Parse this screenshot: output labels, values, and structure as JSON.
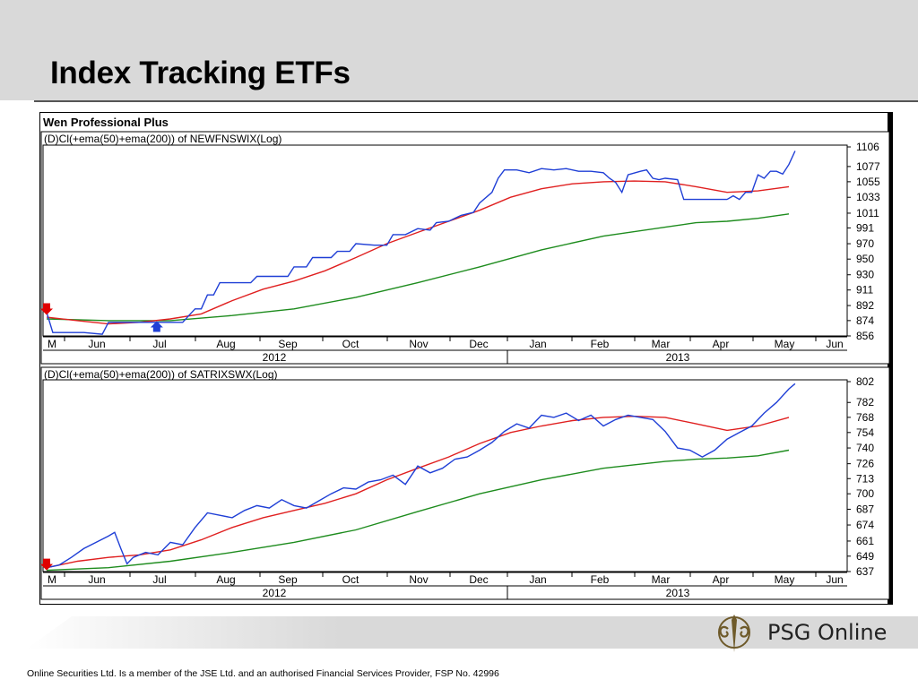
{
  "slide": {
    "title": "Index Tracking ETFs",
    "footer": "Online Securities Ltd. Is a member of the JSE Ltd. and an authorised Financial Services Provider, FSP No. 42996",
    "logo_text": "PSG Online"
  },
  "app": {
    "name": "Wen Professional Plus"
  },
  "colors": {
    "price": "#1f3fd6",
    "ema50": "#e02020",
    "ema200": "#1e8c1e",
    "header_band": "#d9d9d9"
  },
  "chart_data": [
    {
      "type": "line",
      "title": "(D)Cl(+ema(50)+ema(200)) of NEWFNSWIX(Log)",
      "y_scale": "log",
      "ylim": [
        856,
        1106
      ],
      "yticks": [
        "1106",
        "1077",
        "1055",
        "1033",
        "1011",
        "991",
        "970",
        "950",
        "930",
        "911",
        "892",
        "874",
        "856"
      ],
      "months": [
        "M",
        "Jun",
        "Jul",
        "Aug",
        "Sep",
        "Oct",
        "Nov",
        "Dec",
        "Jan",
        "Feb",
        "Mar",
        "Apr",
        "May",
        "Jun"
      ],
      "years": [
        "2012",
        "2013"
      ],
      "markers": [
        {
          "type": "sell",
          "label": "down-arrow",
          "x": 0.0,
          "y": 884
        },
        {
          "type": "buy",
          "label": "up-arrow",
          "x": 0.178,
          "y": 868
        }
      ],
      "series": [
        {
          "name": "Close",
          "color": "#1f3fd6",
          "points": [
            [
              0,
              884
            ],
            [
              0.01,
              860
            ],
            [
              0.03,
              860
            ],
            [
              0.06,
              860
            ],
            [
              0.09,
              858
            ],
            [
              0.1,
              872
            ],
            [
              0.12,
              872
            ],
            [
              0.14,
              872
            ],
            [
              0.16,
              872
            ],
            [
              0.18,
              872
            ],
            [
              0.2,
              872
            ],
            [
              0.22,
              872
            ],
            [
              0.23,
              880
            ],
            [
              0.24,
              888
            ],
            [
              0.25,
              888
            ],
            [
              0.26,
              905
            ],
            [
              0.27,
              905
            ],
            [
              0.28,
              920
            ],
            [
              0.3,
              920
            ],
            [
              0.33,
              920
            ],
            [
              0.34,
              928
            ],
            [
              0.36,
              928
            ],
            [
              0.39,
              928
            ],
            [
              0.4,
              940
            ],
            [
              0.42,
              940
            ],
            [
              0.43,
              952
            ],
            [
              0.46,
              952
            ],
            [
              0.47,
              960
            ],
            [
              0.49,
              960
            ],
            [
              0.5,
              970
            ],
            [
              0.53,
              968
            ],
            [
              0.55,
              968
            ],
            [
              0.56,
              982
            ],
            [
              0.58,
              982
            ],
            [
              0.6,
              990
            ],
            [
              0.62,
              988
            ],
            [
              0.63,
              998
            ],
            [
              0.65,
              1000
            ],
            [
              0.67,
              1008
            ],
            [
              0.69,
              1012
            ],
            [
              0.7,
              1025
            ],
            [
              0.72,
              1040
            ],
            [
              0.73,
              1060
            ],
            [
              0.74,
              1072
            ],
            [
              0.76,
              1072
            ],
            [
              0.78,
              1068
            ],
            [
              0.8,
              1074
            ],
            [
              0.82,
              1072
            ],
            [
              0.84,
              1074
            ],
            [
              0.86,
              1070
            ],
            [
              0.88,
              1070
            ],
            [
              0.9,
              1068
            ],
            [
              0.91,
              1060
            ],
            [
              0.92,
              1054
            ],
            [
              0.93,
              1040
            ],
            [
              0.94,
              1065
            ],
            [
              0.96,
              1070
            ],
            [
              0.97,
              1072
            ],
            [
              0.98,
              1060
            ],
            [
              0.99,
              1058
            ],
            [
              1.0,
              1060
            ],
            [
              1.02,
              1058
            ],
            [
              1.03,
              1030
            ],
            [
              1.05,
              1030
            ],
            [
              1.08,
              1030
            ],
            [
              1.1,
              1030
            ],
            [
              1.11,
              1035
            ],
            [
              1.12,
              1030
            ],
            [
              1.13,
              1040
            ],
            [
              1.14,
              1040
            ],
            [
              1.15,
              1065
            ],
            [
              1.16,
              1060
            ],
            [
              1.17,
              1070
            ],
            [
              1.18,
              1070
            ],
            [
              1.19,
              1066
            ],
            [
              1.2,
              1080
            ],
            [
              1.21,
              1100
            ]
          ]
        },
        {
          "name": "EMA(50)",
          "color": "#e02020",
          "points": [
            [
              0,
              878
            ],
            [
              0.05,
              874
            ],
            [
              0.1,
              870
            ],
            [
              0.15,
              872
            ],
            [
              0.2,
              876
            ],
            [
              0.25,
              882
            ],
            [
              0.3,
              898
            ],
            [
              0.35,
              912
            ],
            [
              0.4,
              922
            ],
            [
              0.45,
              935
            ],
            [
              0.5,
              952
            ],
            [
              0.55,
              970
            ],
            [
              0.6,
              985
            ],
            [
              0.65,
              1000
            ],
            [
              0.7,
              1015
            ],
            [
              0.75,
              1033
            ],
            [
              0.8,
              1045
            ],
            [
              0.85,
              1052
            ],
            [
              0.9,
              1055
            ],
            [
              0.95,
              1056
            ],
            [
              1.0,
              1055
            ],
            [
              1.05,
              1048
            ],
            [
              1.1,
              1040
            ],
            [
              1.15,
              1042
            ],
            [
              1.2,
              1048
            ]
          ]
        },
        {
          "name": "EMA(200)",
          "color": "#1e8c1e",
          "points": [
            [
              0,
              876
            ],
            [
              0.1,
              874
            ],
            [
              0.2,
              874
            ],
            [
              0.3,
              880
            ],
            [
              0.4,
              888
            ],
            [
              0.5,
              902
            ],
            [
              0.6,
              920
            ],
            [
              0.7,
              940
            ],
            [
              0.8,
              962
            ],
            [
              0.9,
              980
            ],
            [
              1.0,
              992
            ],
            [
              1.05,
              998
            ],
            [
              1.1,
              1000
            ],
            [
              1.15,
              1004
            ],
            [
              1.2,
              1010
            ]
          ]
        }
      ]
    },
    {
      "type": "line",
      "title": "(D)Cl(+ema(50)+ema(200)) of SATRIXSWX(Log)",
      "y_scale": "log",
      "ylim": [
        637,
        802
      ],
      "yticks": [
        "802",
        "782",
        "768",
        "754",
        "740",
        "726",
        "713",
        "700",
        "687",
        "674",
        "661",
        "649",
        "637"
      ],
      "months": [
        "M",
        "Jun",
        "Jul",
        "Aug",
        "Sep",
        "Oct",
        "Nov",
        "Dec",
        "Jan",
        "Feb",
        "Mar",
        "Apr",
        "May",
        "Jun"
      ],
      "years": [
        "2012",
        "2013"
      ],
      "markers": [
        {
          "type": "sell",
          "label": "down-arrow",
          "x": 0.0,
          "y": 640
        }
      ],
      "series": [
        {
          "name": "Close",
          "color": "#1f3fd6",
          "points": [
            [
              0,
              640
            ],
            [
              0.02,
              642
            ],
            [
              0.04,
              648
            ],
            [
              0.06,
              655
            ],
            [
              0.08,
              660
            ],
            [
              0.1,
              665
            ],
            [
              0.11,
              668
            ],
            [
              0.12,
              655
            ],
            [
              0.13,
              643
            ],
            [
              0.14,
              648
            ],
            [
              0.16,
              652
            ],
            [
              0.18,
              650
            ],
            [
              0.2,
              660
            ],
            [
              0.22,
              658
            ],
            [
              0.24,
              672
            ],
            [
              0.26,
              684
            ],
            [
              0.28,
              682
            ],
            [
              0.3,
              680
            ],
            [
              0.32,
              686
            ],
            [
              0.34,
              690
            ],
            [
              0.36,
              688
            ],
            [
              0.38,
              695
            ],
            [
              0.4,
              690
            ],
            [
              0.42,
              688
            ],
            [
              0.44,
              694
            ],
            [
              0.46,
              700
            ],
            [
              0.48,
              705
            ],
            [
              0.5,
              704
            ],
            [
              0.52,
              710
            ],
            [
              0.54,
              712
            ],
            [
              0.56,
              716
            ],
            [
              0.58,
              708
            ],
            [
              0.6,
              724
            ],
            [
              0.62,
              718
            ],
            [
              0.64,
              722
            ],
            [
              0.66,
              730
            ],
            [
              0.68,
              732
            ],
            [
              0.7,
              738
            ],
            [
              0.72,
              745
            ],
            [
              0.74,
              755
            ],
            [
              0.76,
              762
            ],
            [
              0.78,
              758
            ],
            [
              0.8,
              770
            ],
            [
              0.82,
              768
            ],
            [
              0.84,
              772
            ],
            [
              0.86,
              765
            ],
            [
              0.88,
              770
            ],
            [
              0.9,
              760
            ],
            [
              0.92,
              766
            ],
            [
              0.94,
              770
            ],
            [
              0.96,
              768
            ],
            [
              0.98,
              766
            ],
            [
              1.0,
              755
            ],
            [
              1.02,
              740
            ],
            [
              1.04,
              738
            ],
            [
              1.06,
              732
            ],
            [
              1.08,
              738
            ],
            [
              1.1,
              748
            ],
            [
              1.12,
              754
            ],
            [
              1.14,
              760
            ],
            [
              1.16,
              772
            ],
            [
              1.18,
              782
            ],
            [
              1.2,
              795
            ],
            [
              1.21,
              800
            ]
          ]
        },
        {
          "name": "EMA(50)",
          "color": "#e02020",
          "points": [
            [
              0,
              640
            ],
            [
              0.05,
              645
            ],
            [
              0.1,
              648
            ],
            [
              0.15,
              650
            ],
            [
              0.2,
              654
            ],
            [
              0.25,
              662
            ],
            [
              0.3,
              672
            ],
            [
              0.35,
              680
            ],
            [
              0.4,
              686
            ],
            [
              0.45,
              692
            ],
            [
              0.5,
              700
            ],
            [
              0.55,
              712
            ],
            [
              0.6,
              722
            ],
            [
              0.65,
              732
            ],
            [
              0.7,
              744
            ],
            [
              0.75,
              754
            ],
            [
              0.8,
              760
            ],
            [
              0.85,
              765
            ],
            [
              0.9,
              768
            ],
            [
              0.95,
              769
            ],
            [
              1.0,
              768
            ],
            [
              1.05,
              762
            ],
            [
              1.1,
              756
            ],
            [
              1.15,
              760
            ],
            [
              1.2,
              768
            ]
          ]
        },
        {
          "name": "EMA(200)",
          "color": "#1e8c1e",
          "points": [
            [
              0,
              638
            ],
            [
              0.1,
              640
            ],
            [
              0.2,
              645
            ],
            [
              0.3,
              652
            ],
            [
              0.4,
              660
            ],
            [
              0.5,
              670
            ],
            [
              0.6,
              685
            ],
            [
              0.7,
              700
            ],
            [
              0.8,
              712
            ],
            [
              0.9,
              722
            ],
            [
              1.0,
              728
            ],
            [
              1.05,
              730
            ],
            [
              1.1,
              731
            ],
            [
              1.15,
              733
            ],
            [
              1.2,
              738
            ]
          ]
        }
      ]
    }
  ]
}
